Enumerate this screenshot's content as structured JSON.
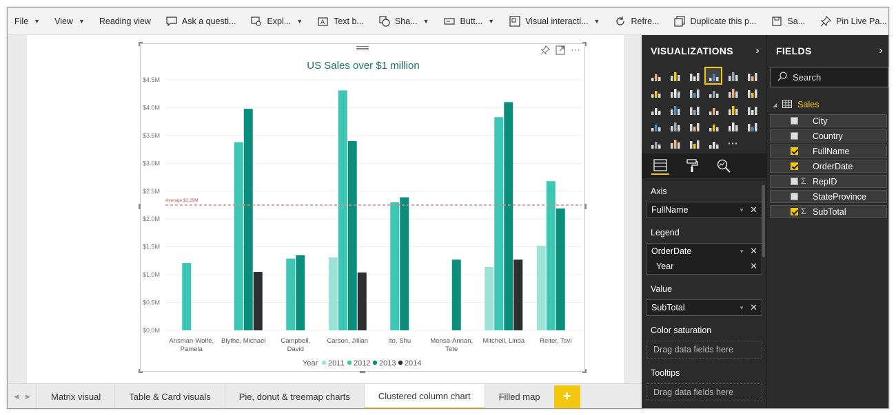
{
  "toolbar": {
    "items": [
      {
        "label": "File",
        "icon": "",
        "chevron": true
      },
      {
        "label": "View",
        "icon": "",
        "chevron": true
      },
      {
        "label": "Reading view",
        "icon": "",
        "chevron": false
      },
      {
        "label": "Ask a questi...",
        "icon": "speech-bubble-icon",
        "chevron": false
      },
      {
        "label": "Expl...",
        "icon": "explore-icon",
        "chevron": true
      },
      {
        "label": "Text b...",
        "icon": "textbox-icon",
        "chevron": false
      },
      {
        "label": "Sha...",
        "icon": "shapes-icon",
        "chevron": true
      },
      {
        "label": "Butt...",
        "icon": "button-icon",
        "chevron": true
      },
      {
        "label": "Visual interacti...",
        "icon": "visual-interactions-icon",
        "chevron": true
      },
      {
        "label": "Refre...",
        "icon": "refresh-icon",
        "chevron": false
      },
      {
        "label": "Duplicate this p...",
        "icon": "duplicate-icon",
        "chevron": false
      },
      {
        "label": "Sa...",
        "icon": "save-icon",
        "chevron": false
      },
      {
        "label": "Pin Live Pa...",
        "icon": "pin-icon",
        "chevron": false
      }
    ],
    "more": "⋯"
  },
  "chart_data": {
    "type": "bar",
    "title": "US Sales over $1 million",
    "categories": [
      "Ansman-Wolfe, Pamela",
      "Blythe, Michael",
      "Campbell, David",
      "Carson, Jillian",
      "Ito, Shu",
      "Mensa-Annan, Tete",
      "Mitchell, Linda",
      "Reiter, Tsvi"
    ],
    "category_lines": [
      [
        "Ansman-Wolfe,",
        "Pamela"
      ],
      [
        "Blythe, Michael"
      ],
      [
        "Campbell,",
        "David"
      ],
      [
        "Carson, Jillian"
      ],
      [
        "Ito, Shu"
      ],
      [
        "Mensa-Annan,",
        "Tete"
      ],
      [
        "Mitchell, Linda"
      ],
      [
        "Reiter, Tsvi"
      ]
    ],
    "series": [
      {
        "name": "2011",
        "color": "#9fe2d8",
        "values": [
          null,
          null,
          null,
          1.31,
          null,
          null,
          1.14,
          1.52
        ]
      },
      {
        "name": "2012",
        "color": "#3ec6b4",
        "values": [
          1.21,
          3.38,
          1.29,
          4.31,
          2.3,
          null,
          3.83,
          2.68
        ]
      },
      {
        "name": "2013",
        "color": "#0b8f7c",
        "values": [
          null,
          3.98,
          1.35,
          3.4,
          2.39,
          1.27,
          4.1,
          2.19
        ]
      },
      {
        "name": "2014",
        "color": "#2b2f2f",
        "values": [
          null,
          1.05,
          null,
          1.04,
          null,
          null,
          1.27,
          null
        ]
      }
    ],
    "y_ticks": [
      "$0.0M",
      "$0.5M",
      "$1.0M",
      "$1.5M",
      "$2.0M",
      "$2.5M",
      "$3.0M",
      "$3.5M",
      "$4.0M",
      "$4.5M"
    ],
    "ylim": [
      0,
      4.5
    ],
    "average_line": {
      "value": 2.25,
      "label": "Average $2.25M",
      "color": "#e8837a"
    },
    "legend_title": "Year",
    "legend_position": "bottom-center",
    "grid": true
  },
  "tabs": {
    "items": [
      "Matrix visual",
      "Table & Card visuals",
      "Pie, donut & treemap charts",
      "Clustered column chart",
      "Filled map"
    ],
    "active": "Clustered column chart",
    "add": "+"
  },
  "visualizations": {
    "title": "VISUALIZATIONS",
    "arrow": "›",
    "sections": {
      "axis": {
        "label": "Axis",
        "fields": [
          "FullName"
        ]
      },
      "legend": {
        "label": "Legend",
        "fields": [
          "OrderDate"
        ],
        "sub": [
          "Year"
        ]
      },
      "value": {
        "label": "Value",
        "fields": [
          "SubTotal"
        ]
      },
      "color_saturation": {
        "label": "Color saturation",
        "placeholder": "Drag data fields here"
      },
      "tooltips": {
        "label": "Tooltips",
        "placeholder": "Drag data fields here"
      }
    },
    "more_icon": "⋯"
  },
  "fields": {
    "title": "FIELDS",
    "arrow": "›",
    "search_placeholder": "Search",
    "table_name": "Sales",
    "items": [
      {
        "name": "City",
        "checked": false,
        "sigma": false
      },
      {
        "name": "Country",
        "checked": false,
        "sigma": false
      },
      {
        "name": "FullName",
        "checked": true,
        "sigma": false
      },
      {
        "name": "OrderDate",
        "checked": true,
        "sigma": false
      },
      {
        "name": "RepID",
        "checked": false,
        "sigma": true
      },
      {
        "name": "StateProvince",
        "checked": false,
        "sigma": false
      },
      {
        "name": "SubTotal",
        "checked": true,
        "sigma": true
      }
    ]
  },
  "colors": {
    "accent": "#f2c811",
    "title_teal": "#1e6f6a"
  }
}
